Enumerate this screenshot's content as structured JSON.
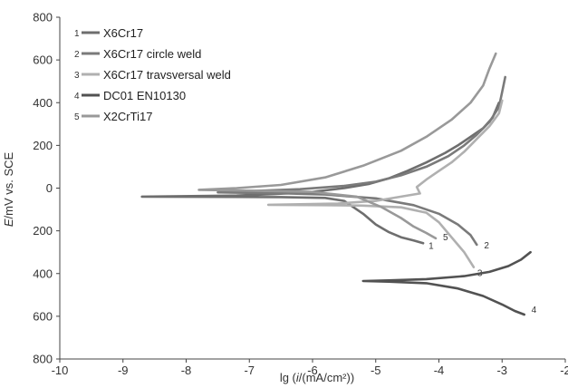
{
  "chart_data": {
    "type": "line",
    "xlabel_prefix": "lg (",
    "xlabel_var": "i",
    "xlabel_suffix": "/(mA/cm²))",
    "ylabel_var": "E",
    "ylabel_suffix": "/mV vs. SCE",
    "xlim": [
      -10,
      -2
    ],
    "ylim": [
      -800,
      800
    ],
    "xticks": [
      "-10",
      "-9",
      "-8",
      "-7",
      "-6",
      "-5",
      "-4",
      "-3",
      "-2"
    ],
    "yticks": [
      "800",
      "600",
      "400",
      "200",
      "0",
      "200",
      "400",
      "600",
      "800"
    ],
    "grid": false,
    "legend_position": "top-left",
    "series": [
      {
        "id": "1",
        "name": "X6Cr17",
        "color": "#6e6e6e",
        "points": [
          [
            -3.05,
            400
          ],
          [
            -3.15,
            330
          ],
          [
            -3.3,
            280
          ],
          [
            -3.5,
            240
          ],
          [
            -3.7,
            200
          ],
          [
            -3.9,
            165
          ],
          [
            -4.2,
            120
          ],
          [
            -4.5,
            80
          ],
          [
            -4.8,
            45
          ],
          [
            -5.1,
            20
          ],
          [
            -5.5,
            0
          ],
          [
            -6.0,
            -18
          ],
          [
            -6.6,
            -28
          ],
          [
            -7.2,
            -35
          ],
          [
            -8.7,
            -40
          ],
          [
            -6.5,
            -42
          ],
          [
            -5.8,
            -46
          ],
          [
            -5.5,
            -60
          ],
          [
            -5.2,
            -120
          ],
          [
            -5.0,
            -170
          ],
          [
            -4.8,
            -205
          ],
          [
            -4.6,
            -230
          ],
          [
            -4.4,
            -245
          ],
          [
            -4.25,
            -258
          ]
        ]
      },
      {
        "id": "2",
        "name": "X6Cr17 circle weld",
        "color": "#7a7a7a",
        "points": [
          [
            -2.95,
            520
          ],
          [
            -3.0,
            450
          ],
          [
            -3.05,
            380
          ],
          [
            -3.2,
            310
          ],
          [
            -3.4,
            250
          ],
          [
            -3.6,
            200
          ],
          [
            -3.85,
            150
          ],
          [
            -4.2,
            100
          ],
          [
            -4.6,
            60
          ],
          [
            -5.0,
            30
          ],
          [
            -5.5,
            10
          ],
          [
            -6.2,
            -5
          ],
          [
            -7.0,
            -14
          ],
          [
            -7.5,
            -20
          ],
          [
            -6.5,
            -24
          ],
          [
            -5.8,
            -30
          ],
          [
            -5.0,
            -48
          ],
          [
            -4.4,
            -80
          ],
          [
            -4.0,
            -120
          ],
          [
            -3.7,
            -170
          ],
          [
            -3.5,
            -220
          ],
          [
            -3.4,
            -265
          ]
        ]
      },
      {
        "id": "3",
        "name": "X6Cr17 travsversal weld",
        "color": "#b0b0b0",
        "points": [
          [
            -3.0,
            410
          ],
          [
            -3.05,
            350
          ],
          [
            -3.2,
            290
          ],
          [
            -3.4,
            230
          ],
          [
            -3.6,
            170
          ],
          [
            -3.8,
            120
          ],
          [
            -4.0,
            80
          ],
          [
            -4.2,
            40
          ],
          [
            -4.35,
            5
          ],
          [
            -4.3,
            -25
          ],
          [
            -4.6,
            -40
          ],
          [
            -5.0,
            -60
          ],
          [
            -5.6,
            -72
          ],
          [
            -6.7,
            -78
          ],
          [
            -5.8,
            -80
          ],
          [
            -5.2,
            -82
          ],
          [
            -4.6,
            -90
          ],
          [
            -4.2,
            -115
          ],
          [
            -4.0,
            -160
          ],
          [
            -3.8,
            -230
          ],
          [
            -3.6,
            -300
          ],
          [
            -3.45,
            -370
          ]
        ]
      },
      {
        "id": "4",
        "name": "DC01 EN10130",
        "color": "#525252",
        "points": [
          [
            -2.55,
            -300
          ],
          [
            -2.7,
            -335
          ],
          [
            -2.9,
            -365
          ],
          [
            -3.2,
            -392
          ],
          [
            -3.6,
            -412
          ],
          [
            -4.2,
            -426
          ],
          [
            -4.8,
            -432
          ],
          [
            -5.2,
            -435
          ],
          [
            -4.8,
            -438
          ],
          [
            -4.2,
            -445
          ],
          [
            -3.7,
            -470
          ],
          [
            -3.3,
            -505
          ],
          [
            -3.0,
            -545
          ],
          [
            -2.8,
            -575
          ],
          [
            -2.65,
            -592
          ]
        ]
      },
      {
        "id": "5",
        "name": "X2CrTi17",
        "color": "#999999",
        "points": [
          [
            -3.1,
            630
          ],
          [
            -3.2,
            560
          ],
          [
            -3.3,
            480
          ],
          [
            -3.5,
            400
          ],
          [
            -3.8,
            320
          ],
          [
            -4.2,
            240
          ],
          [
            -4.6,
            175
          ],
          [
            -5.2,
            105
          ],
          [
            -5.8,
            50
          ],
          [
            -6.5,
            15
          ],
          [
            -7.2,
            0
          ],
          [
            -7.8,
            -8
          ],
          [
            -7.0,
            -12
          ],
          [
            -6.0,
            -18
          ],
          [
            -5.3,
            -40
          ],
          [
            -4.9,
            -90
          ],
          [
            -4.6,
            -140
          ],
          [
            -4.4,
            -180
          ],
          [
            -4.2,
            -210
          ],
          [
            -4.05,
            -235
          ]
        ]
      }
    ]
  }
}
